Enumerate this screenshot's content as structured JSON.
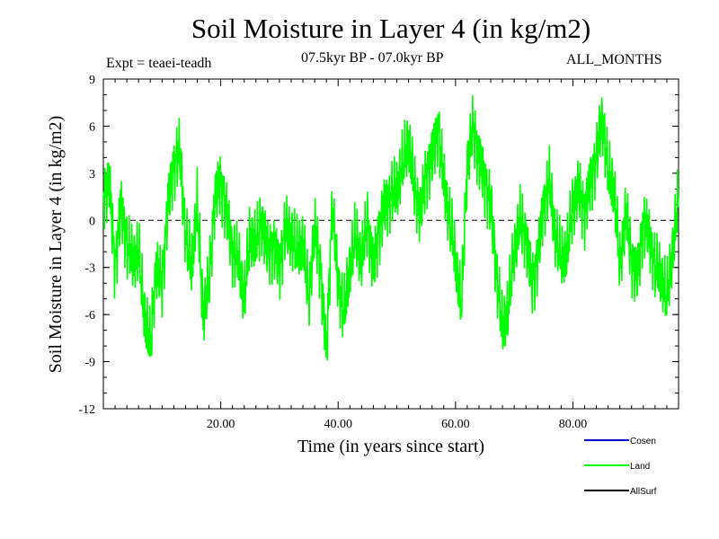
{
  "title": "Soil Moisture in Layer 4 (in kg/m2)",
  "experiment": "Expt = teaei-teadh",
  "period": "07.5kyr BP - 07.0kyr BP",
  "months": "ALL_MONTHS",
  "chart_data": {
    "type": "line",
    "title": "Soil Moisture in Layer 4 (in kg/m2)",
    "xlabel": "Time (in years since start)",
    "ylabel": "Soil Moisture in Layer 4 (in kg/m2)",
    "xlim": [
      0,
      98
    ],
    "ylim": [
      -12,
      9
    ],
    "x_ticks": [
      20,
      40,
      60,
      80
    ],
    "x_tick_labels": [
      "20.00",
      "40.00",
      "60.00",
      "80.00"
    ],
    "y_ticks": [
      -12,
      -9,
      -6,
      -3,
      0,
      3,
      6,
      9
    ],
    "y_tick_labels": [
      "-12",
      "-9",
      "-6",
      "-3",
      "0",
      "3",
      "6",
      "9"
    ],
    "reference_line": 0,
    "colors": {
      "Cosen": "#0000cc",
      "Land": "#00ff00",
      "AllSurf": "#000000"
    },
    "legend": [
      "Cosen",
      "Land",
      "AllSurf"
    ],
    "series": [
      {
        "name": "Land",
        "x": [
          0,
          1,
          2,
          3,
          4,
          5,
          6,
          7,
          8,
          9,
          10,
          11,
          12,
          13,
          14,
          15,
          16,
          17,
          18,
          19,
          20,
          21,
          22,
          23,
          24,
          25,
          26,
          27,
          28,
          29,
          30,
          31,
          32,
          33,
          34,
          35,
          36,
          37,
          38,
          39,
          40,
          41,
          42,
          43,
          44,
          45,
          46,
          47,
          48,
          49,
          50,
          51,
          52,
          53,
          54,
          55,
          56,
          57,
          58,
          59,
          60,
          61,
          62,
          63,
          64,
          65,
          66,
          67,
          68,
          69,
          70,
          71,
          72,
          73,
          74,
          75,
          76,
          77,
          78,
          79,
          80,
          81,
          82,
          83,
          84,
          85,
          86,
          87,
          88,
          89,
          90,
          91,
          92,
          93,
          94,
          95,
          96,
          97,
          98
        ],
        "values": [
          1.5,
          2.5,
          -3.0,
          1.0,
          -1.5,
          -2.5,
          -2.0,
          -6.0,
          -8.0,
          -3.0,
          -4.0,
          1.0,
          3.5,
          4.5,
          -1.0,
          -3.0,
          1.0,
          -6.0,
          -4.0,
          1.5,
          2.5,
          0.5,
          -2.0,
          -2.5,
          -5.0,
          -1.0,
          -1.5,
          0.0,
          -2.0,
          -1.5,
          -3.0,
          -0.5,
          -1.0,
          -2.0,
          -1.5,
          -5.0,
          -0.5,
          -3.0,
          -8.5,
          1.0,
          -4.0,
          -6.0,
          -3.0,
          -1.0,
          -2.5,
          0.0,
          -3.0,
          -0.5,
          1.0,
          1.5,
          2.0,
          3.5,
          5.0,
          2.0,
          0.5,
          3.0,
          4.0,
          6.0,
          2.5,
          0.0,
          -2.5,
          -5.5,
          3.5,
          6.0,
          4.0,
          2.5,
          1.0,
          -3.5,
          -7.0,
          -5.5,
          -2.0,
          0.0,
          -1.0,
          -4.0,
          -2.5,
          1.0,
          2.5,
          -1.0,
          -2.5,
          -2.0,
          1.0,
          2.0,
          0.5,
          2.5,
          4.0,
          6.5,
          3.0,
          2.0,
          -3.0,
          0.5,
          -2.5,
          -3.5,
          0.0,
          -1.0,
          -3.0,
          -3.5,
          -5.0,
          -2.0,
          1.5
        ]
      }
    ]
  }
}
